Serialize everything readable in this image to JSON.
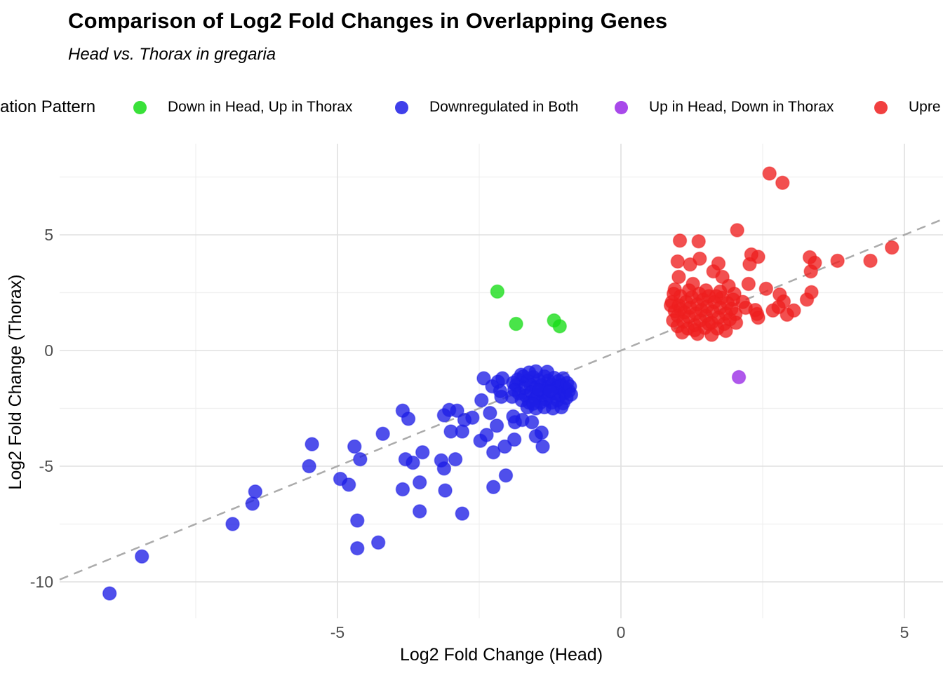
{
  "title": "Comparison of Log2 Fold Changes in Overlapping Genes",
  "subtitle": "Head vs. Thorax in gregaria",
  "legend": {
    "title_clipped": "ation Pattern",
    "items": [
      {
        "label": "Down in Head, Up in Thorax",
        "color": "#16DC16"
      },
      {
        "label": "Downregulated in Both",
        "color": "#1D1DE6"
      },
      {
        "label": "Up in Head, Down in Thorax",
        "color": "#9929E6"
      },
      {
        "label": "Upre",
        "color": "#EE1F1F"
      }
    ]
  },
  "axes": {
    "x_label": "Log2 Fold Change (Head)",
    "y_label": "Log2 Fold Change (Thorax)",
    "x_ticks": [
      -5,
      0,
      5
    ],
    "y_ticks": [
      -10,
      -5,
      0,
      5
    ],
    "x_tick_labels": [
      "-5",
      "0",
      "5"
    ],
    "y_tick_labels": [
      "-10",
      "-5",
      "0",
      "5"
    ]
  },
  "chart_data": {
    "type": "scatter",
    "title": "Comparison of Log2 Fold Changes in Overlapping Genes",
    "subtitle": "Head vs. Thorax in gregaria",
    "xlabel": "Log2 Fold Change (Head)",
    "ylabel": "Log2 Fold Change (Thorax)",
    "xlim": [
      -9.9,
      5.7
    ],
    "ylim": [
      -11.5,
      8.9
    ],
    "grid": "major-minor",
    "legend_position": "top",
    "identity_line": {
      "equation": "y = x",
      "style": "dashed",
      "color": "#ABABAB"
    },
    "series": [
      {
        "name": "Down in Head, Up in Thorax",
        "color": "#16DC16",
        "points": [
          [
            -2.18,
            2.55
          ],
          [
            -1.85,
            1.15
          ],
          [
            -1.18,
            1.3
          ],
          [
            -1.08,
            1.05
          ]
        ]
      },
      {
        "name": "Downregulated in Both",
        "color": "#1D1DE6",
        "points": [
          [
            -9.02,
            -10.5
          ],
          [
            -8.45,
            -8.9
          ],
          [
            -6.85,
            -7.5
          ],
          [
            -6.45,
            -6.1
          ],
          [
            -6.5,
            -6.62
          ],
          [
            -5.45,
            -4.05
          ],
          [
            -4.7,
            -4.15
          ],
          [
            -4.6,
            -4.7
          ],
          [
            -5.5,
            -5.0
          ],
          [
            -4.95,
            -5.55
          ],
          [
            -4.8,
            -5.8
          ],
          [
            -4.65,
            -7.35
          ],
          [
            -4.65,
            -8.55
          ],
          [
            -4.28,
            -8.3
          ],
          [
            -3.85,
            -2.6
          ],
          [
            -3.75,
            -2.95
          ],
          [
            -4.2,
            -3.6
          ],
          [
            -3.8,
            -4.7
          ],
          [
            -3.67,
            -4.85
          ],
          [
            -3.5,
            -4.4
          ],
          [
            -3.17,
            -4.75
          ],
          [
            -2.92,
            -4.7
          ],
          [
            -3.12,
            -5.1
          ],
          [
            -3.1,
            -6.05
          ],
          [
            -3.55,
            -5.7
          ],
          [
            -3.85,
            -6.0
          ],
          [
            -3.55,
            -6.95
          ],
          [
            -2.8,
            -7.05
          ],
          [
            -2.03,
            -5.4
          ],
          [
            -2.25,
            -5.9
          ],
          [
            -2.05,
            -4.15
          ],
          [
            -2.25,
            -4.4
          ],
          [
            -1.4,
            -3.55
          ],
          [
            -1.38,
            -4.15
          ],
          [
            -1.88,
            -3.85
          ],
          [
            -2.48,
            -3.9
          ],
          [
            -2.37,
            -3.65
          ],
          [
            -3.0,
            -3.5
          ],
          [
            -2.8,
            -3.5
          ],
          [
            -2.19,
            -3.25
          ],
          [
            -1.87,
            -3.1
          ],
          [
            -1.74,
            -3.0
          ],
          [
            -1.57,
            -3.1
          ],
          [
            -1.5,
            -3.7
          ],
          [
            -1.9,
            -2.85
          ],
          [
            -2.31,
            -2.7
          ],
          [
            -2.62,
            -2.9
          ],
          [
            -2.76,
            -3.0
          ],
          [
            -2.89,
            -2.6
          ],
          [
            -3.03,
            -2.57
          ],
          [
            -3.12,
            -2.8
          ],
          [
            -2.42,
            -1.2
          ],
          [
            -2.27,
            -1.55
          ],
          [
            -2.17,
            -1.35
          ],
          [
            -2.09,
            -1.2
          ],
          [
            -2.13,
            -1.75
          ],
          [
            -2.46,
            -2.15
          ],
          [
            -2.11,
            -2.0
          ],
          [
            -1.76,
            -1.05
          ],
          [
            -1.82,
            -1.25
          ],
          [
            -1.72,
            -1.12
          ],
          [
            -1.65,
            -1.3
          ],
          [
            -1.55,
            -1.15
          ],
          [
            -1.45,
            -1.28
          ],
          [
            -1.35,
            -1.12
          ],
          [
            -1.28,
            -1.3
          ],
          [
            -1.18,
            -1.18
          ],
          [
            -1.1,
            -1.32
          ],
          [
            -1.02,
            -1.2
          ],
          [
            -1.85,
            -1.5
          ],
          [
            -1.7,
            -1.62
          ],
          [
            -1.6,
            -1.48
          ],
          [
            -1.5,
            -1.6
          ],
          [
            -1.4,
            -1.5
          ],
          [
            -1.3,
            -1.62
          ],
          [
            -1.22,
            -1.48
          ],
          [
            -1.12,
            -1.6
          ],
          [
            -1.05,
            -1.5
          ],
          [
            -0.98,
            -1.62
          ],
          [
            -1.8,
            -1.85
          ],
          [
            -1.68,
            -1.95
          ],
          [
            -1.58,
            -1.8
          ],
          [
            -1.48,
            -1.95
          ],
          [
            -1.38,
            -1.82
          ],
          [
            -1.28,
            -1.95
          ],
          [
            -1.18,
            -1.85
          ],
          [
            -1.08,
            -1.95
          ],
          [
            -1.0,
            -1.85
          ],
          [
            -1.75,
            -2.15
          ],
          [
            -1.62,
            -2.25
          ],
          [
            -1.52,
            -2.1
          ],
          [
            -1.42,
            -2.25
          ],
          [
            -1.32,
            -2.12
          ],
          [
            -1.22,
            -2.25
          ],
          [
            -1.12,
            -2.15
          ],
          [
            -1.02,
            -2.28
          ],
          [
            -1.65,
            -2.45
          ],
          [
            -1.5,
            -2.5
          ],
          [
            -1.35,
            -2.45
          ],
          [
            -1.2,
            -2.5
          ],
          [
            -1.05,
            -2.45
          ],
          [
            -1.55,
            -2.3
          ],
          [
            -1.45,
            -1.7
          ],
          [
            -1.25,
            -1.75
          ],
          [
            -0.95,
            -1.4
          ],
          [
            -0.92,
            -1.75
          ],
          [
            -0.96,
            -2.05
          ],
          [
            -1.9,
            -1.4
          ],
          [
            -1.88,
            -1.7
          ],
          [
            -1.92,
            -2.0
          ],
          [
            -1.5,
            -0.9
          ],
          [
            -1.3,
            -0.92
          ],
          [
            -1.62,
            -0.95
          ],
          [
            -0.9,
            -1.55
          ],
          [
            -0.88,
            -1.9
          ]
        ]
      },
      {
        "name": "Up in Head, Down in Thorax",
        "color": "#9929E6",
        "points": [
          [
            2.08,
            -1.15
          ]
        ]
      },
      {
        "name": "Upregulated in Both",
        "color": "#EE1F1F",
        "points": [
          [
            2.62,
            7.65
          ],
          [
            2.85,
            7.25
          ],
          [
            2.05,
            5.2
          ],
          [
            1.04,
            4.75
          ],
          [
            1.37,
            4.72
          ],
          [
            1.0,
            3.85
          ],
          [
            1.22,
            3.72
          ],
          [
            1.39,
            3.97
          ],
          [
            1.72,
            3.76
          ],
          [
            2.3,
            4.15
          ],
          [
            2.42,
            4.05
          ],
          [
            2.27,
            3.73
          ],
          [
            3.33,
            4.03
          ],
          [
            3.42,
            3.79
          ],
          [
            3.35,
            3.42
          ],
          [
            3.82,
            3.88
          ],
          [
            4.4,
            3.88
          ],
          [
            4.78,
            4.45
          ],
          [
            3.05,
            1.73
          ],
          [
            2.93,
            1.55
          ],
          [
            2.68,
            1.73
          ],
          [
            2.8,
            2.42
          ],
          [
            2.87,
            2.12
          ],
          [
            2.78,
            1.88
          ],
          [
            3.28,
            2.2
          ],
          [
            3.36,
            2.52
          ],
          [
            2.56,
            2.67
          ],
          [
            2.4,
            1.58
          ],
          [
            2.42,
            1.42
          ],
          [
            2.37,
            1.75
          ],
          [
            2.2,
            1.85
          ],
          [
            2.15,
            2.1
          ],
          [
            2.03,
            1.2
          ],
          [
            1.02,
            3.18
          ],
          [
            1.63,
            3.42
          ],
          [
            1.79,
            3.18
          ],
          [
            0.95,
            2.64
          ],
          [
            1.27,
            2.88
          ],
          [
            1.9,
            2.79
          ],
          [
            2.25,
            2.88
          ],
          [
            0.92,
            1.3
          ],
          [
            0.95,
            1.7
          ],
          [
            0.9,
            2.1
          ],
          [
            1.0,
            1.05
          ],
          [
            1.0,
            1.5
          ],
          [
            1.02,
            1.95
          ],
          [
            1.05,
            2.35
          ],
          [
            1.1,
            1.25
          ],
          [
            1.12,
            1.65
          ],
          [
            1.15,
            2.1
          ],
          [
            1.18,
            0.95
          ],
          [
            1.2,
            1.45
          ],
          [
            1.22,
            1.85
          ],
          [
            1.25,
            2.3
          ],
          [
            1.3,
            1.1
          ],
          [
            1.32,
            1.6
          ],
          [
            1.35,
            2.0
          ],
          [
            1.38,
            2.45
          ],
          [
            1.4,
            1.3
          ],
          [
            1.42,
            1.75
          ],
          [
            1.45,
            2.2
          ],
          [
            1.48,
            0.98
          ],
          [
            1.5,
            1.5
          ],
          [
            1.52,
            1.9
          ],
          [
            1.55,
            2.35
          ],
          [
            1.6,
            1.2
          ],
          [
            1.62,
            1.68
          ],
          [
            1.65,
            2.1
          ],
          [
            1.7,
            0.95
          ],
          [
            1.72,
            1.42
          ],
          [
            1.75,
            1.85
          ],
          [
            1.78,
            2.28
          ],
          [
            1.82,
            1.15
          ],
          [
            1.85,
            1.6
          ],
          [
            1.88,
            2.05
          ],
          [
            1.92,
            1.35
          ],
          [
            1.95,
            1.8
          ],
          [
            1.98,
            2.2
          ],
          [
            2.02,
            1.58
          ],
          [
            1.08,
            0.78
          ],
          [
            1.35,
            0.72
          ],
          [
            1.6,
            0.68
          ],
          [
            1.85,
            0.85
          ],
          [
            0.88,
            1.95
          ],
          [
            0.93,
            2.45
          ],
          [
            1.5,
            2.6
          ],
          [
            1.2,
            2.6
          ],
          [
            1.75,
            2.55
          ],
          [
            2.0,
            2.45
          ],
          [
            1.3,
            0.88
          ],
          [
            1.55,
            1.15
          ],
          [
            1.05,
            1.78
          ],
          [
            1.68,
            2.35
          ]
        ]
      }
    ]
  }
}
